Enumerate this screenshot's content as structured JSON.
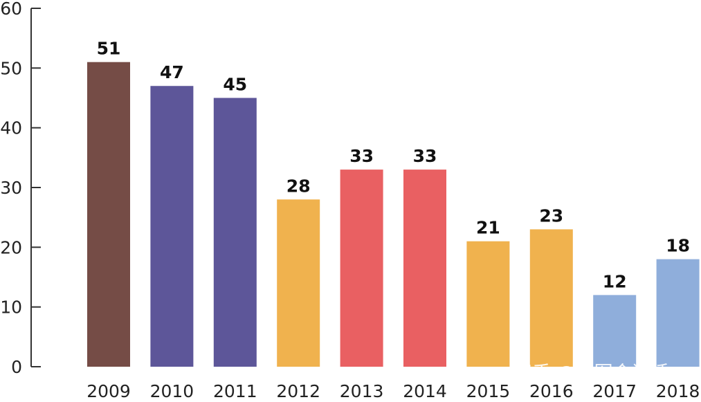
{
  "chart_data": {
    "type": "bar",
    "categories": [
      "2009",
      "2010",
      "2011",
      "2012",
      "2013",
      "2014",
      "2015",
      "2016",
      "2017",
      "2018"
    ],
    "values": [
      51,
      47,
      45,
      28,
      33,
      33,
      21,
      23,
      12,
      18
    ],
    "data_labels": [
      "51",
      "47",
      "45",
      "28",
      "33",
      "33",
      "21",
      "23",
      "12",
      "18"
    ],
    "colors": [
      "#754C46",
      "#5D5699",
      "#5D5699",
      "#F0B24E",
      "#E96062",
      "#E96062",
      "#F0B24E",
      "#F0B24E",
      "#8FAEDB",
      "#8FAEDB"
    ],
    "ylim": [
      0,
      60
    ],
    "yticks": [
      0,
      10,
      20,
      30,
      40,
      50,
      60
    ],
    "title": "",
    "xlabel": "",
    "ylabel": "",
    "grid": false,
    "legend": "none"
  },
  "watermark": "知乎 @地图会说话",
  "colors": {
    "axis": "#333333",
    "text": "#222222"
  }
}
